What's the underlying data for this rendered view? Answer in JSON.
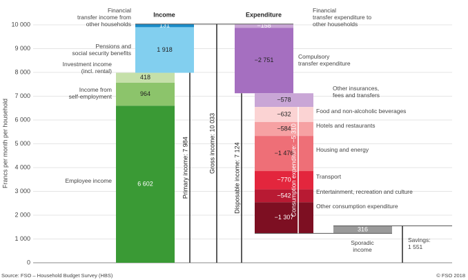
{
  "chart_data": {
    "type": "waterfall",
    "y_label": "Francs per month per household",
    "ylim": [
      0,
      10000
    ],
    "yticks": [
      0,
      {
        "value": 1000,
        "label": "1 000"
      },
      {
        "value": 2000,
        "label": "2 000"
      },
      {
        "value": 3000,
        "label": "3 000"
      },
      {
        "value": 4000,
        "label": "4 000"
      },
      {
        "value": 5000,
        "label": "5 000"
      },
      {
        "value": 6000,
        "label": "6 000"
      },
      {
        "value": 7000,
        "label": "7 000"
      },
      {
        "value": 8000,
        "label": "8 000"
      },
      {
        "value": 9000,
        "label": "9 000"
      },
      {
        "value": 10000,
        "label": "10 000"
      }
    ],
    "grid": true,
    "headers": [
      "Income",
      "Expenditure"
    ],
    "segments": [
      {
        "name": "Employee income",
        "value": 6602,
        "value_label": "6 602",
        "color": "#3a9a35"
      },
      {
        "name": "Income from\nself-employment",
        "value": 964,
        "value_label": "964",
        "color": "#8cc46b"
      },
      {
        "name": "Investment income\n(incl. rental)",
        "value": 418,
        "value_label": "418",
        "color": "#c5e0a9"
      },
      {
        "name": "Pensions and\nsocial security benefits",
        "value": 1918,
        "value_label": "1 918",
        "color": "#82cfef"
      },
      {
        "name": "Financial\ntransfer income from\nother households",
        "value": 131,
        "value_label": "131",
        "color": "#1a8cc8"
      },
      {
        "name": "Financial\ntransfer expenditure to\nother households",
        "value": -158,
        "value_label": "−158",
        "color": "#c9a6d6"
      },
      {
        "name": "Compulsory\ntransfer expenditure",
        "value": -2751,
        "value_label": "−2 751",
        "color": "#a56fc0"
      },
      {
        "name": "Other insurances,\nfees and transfers",
        "value": -578,
        "value_label": "−578",
        "color": "#c9a6d6"
      },
      {
        "name": "Food and non-alcoholic beverages",
        "value": -632,
        "value_label": "−632",
        "color": "#fbd3d3"
      },
      {
        "name": "Hotels and restaurants",
        "value": -584,
        "value_label": "−584",
        "color": "#f6a1a3"
      },
      {
        "name": "Housing and energy",
        "value": -1476,
        "value_label": "−1 476",
        "color": "#ee6f77"
      },
      {
        "name": "Transport",
        "value": -770,
        "value_label": "−770",
        "color": "#e3263d"
      },
      {
        "name": "Entertainment, recreation and culture",
        "value": -542,
        "value_label": "−542",
        "color": "#b81a33"
      },
      {
        "name": "Other consumption expenditure",
        "value": -1307,
        "value_label": "−1 307",
        "color": "#7d0f22"
      },
      {
        "name": "Sporadic\nincome",
        "value": 316,
        "value_label": "316",
        "color": "#9a9a9a"
      }
    ],
    "totals": [
      {
        "label": "Primary income: 7 984",
        "value": 7984
      },
      {
        "label": "Gross income: 10 033",
        "value": 10033
      },
      {
        "label": "Disposable income: 7 124",
        "value": 7124
      },
      {
        "label": "Consumption expenditure: −5 310",
        "value": -5310
      },
      {
        "label": "Savings:\n1 551",
        "value": 1551
      }
    ],
    "source": "Source: FSO – Household Budget Survey (HBS)",
    "copyright": "© FSO 2018"
  }
}
